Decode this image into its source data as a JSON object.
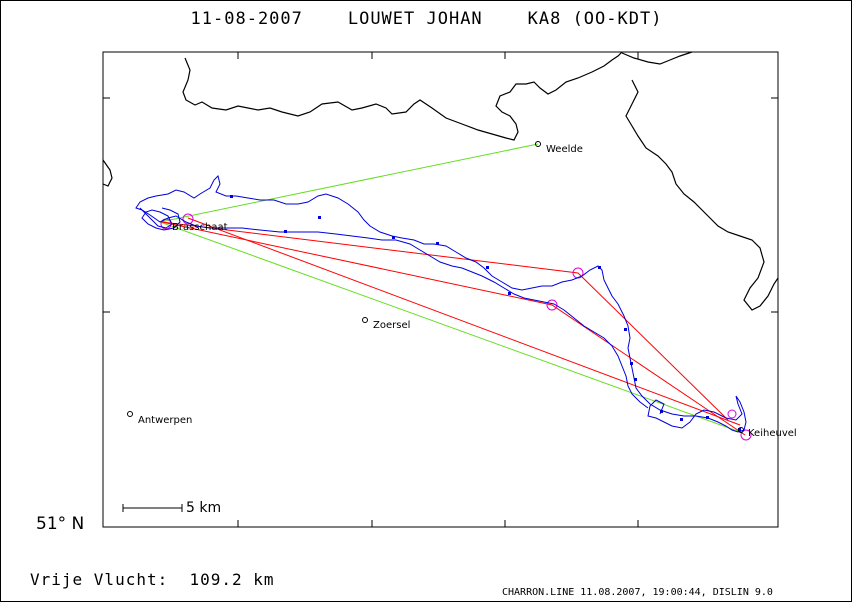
{
  "header": {
    "date": "11-08-2007",
    "pilot": "LOUWET JOHAN",
    "glider": "KA8 (OO-KDT)"
  },
  "latitude_label": "51° N",
  "scale_label": "5 km",
  "footer": {
    "distance_label": "Vrije Vlucht:",
    "distance_value": "109.2 km",
    "credit": "CHARRON.LINE 11.08.2007, 19:00:44, DISLIN 9.0"
  },
  "places": {
    "weelde": "Weelde",
    "brasschaat": "Brasschaat",
    "zoersel": "Zoersel",
    "antwerpen": "Antwerpen",
    "keiheuvel": "Keiheuvel"
  },
  "colors": {
    "track": "#0000dd",
    "task_line": "#ff0000",
    "start_line": "#66dd22",
    "turnpoint_circle": "#dd00dd",
    "border": "#000000"
  }
}
